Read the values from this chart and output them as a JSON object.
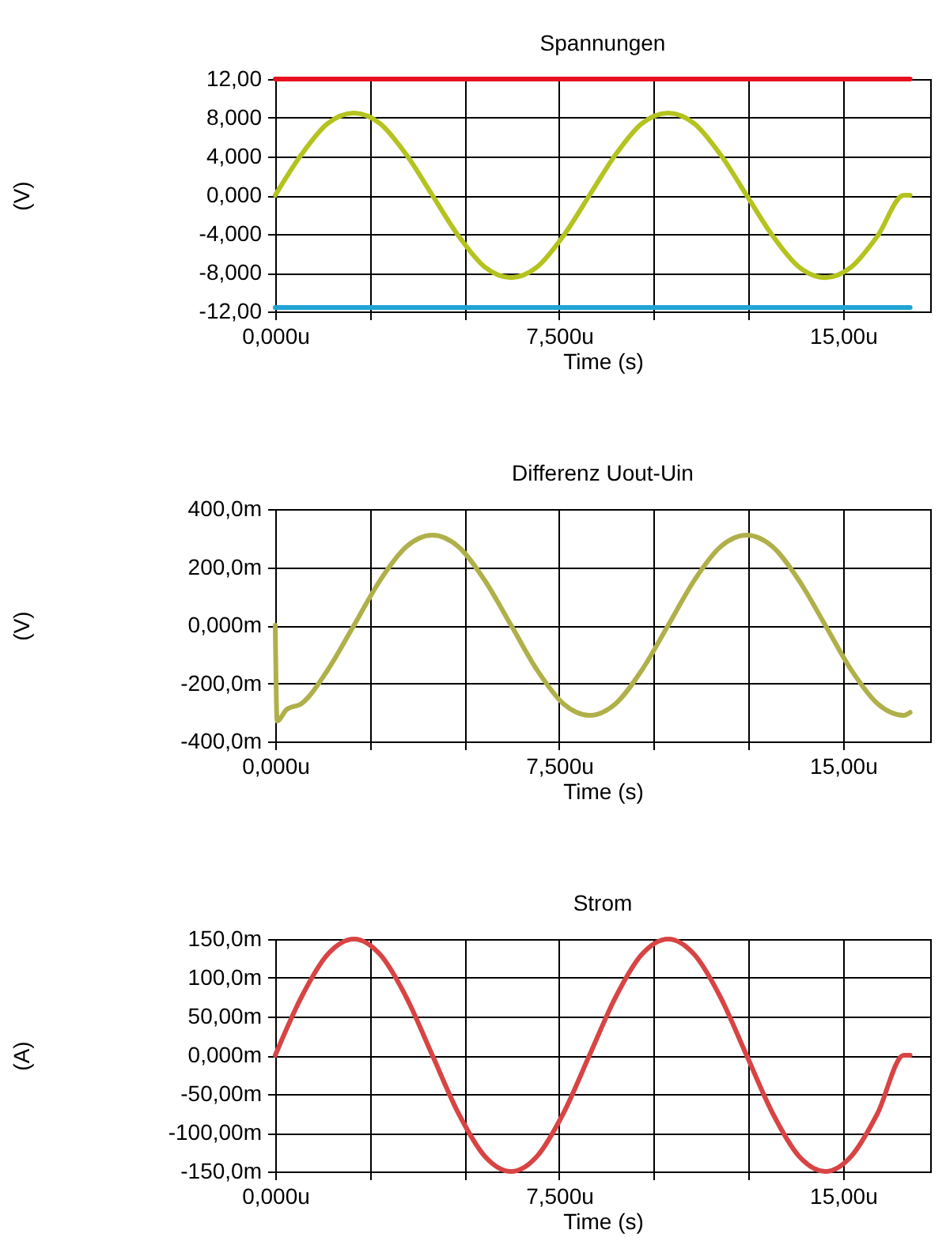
{
  "chart_data": [
    {
      "type": "line",
      "title": "Spannungen",
      "xlabel": "Time (s)",
      "ylabel": "(V)",
      "grid": true,
      "legend": false,
      "xlim": [
        0,
        17.3
      ],
      "xticks": [
        {
          "value": 0,
          "label": "0,000u"
        },
        {
          "value": 2.5,
          "label": null
        },
        {
          "value": 5,
          "label": null
        },
        {
          "value": 7.5,
          "label": "7,500u"
        },
        {
          "value": 10,
          "label": null
        },
        {
          "value": 12.5,
          "label": null
        },
        {
          "value": 15,
          "label": "15,00u"
        }
      ],
      "ylim": [
        -12,
        12
      ],
      "yticks": [
        {
          "value": 12,
          "label": "12,00"
        },
        {
          "value": 8,
          "label": "8,000"
        },
        {
          "value": 4,
          "label": "4,000"
        },
        {
          "value": 0,
          "label": "0,000"
        },
        {
          "value": -4,
          "label": "-4,000"
        },
        {
          "value": -8,
          "label": "-8,000"
        },
        {
          "value": -12,
          "label": "-12,00"
        }
      ],
      "series": [
        {
          "color": "#e8101c",
          "x": [
            0,
            16.77
          ],
          "values": [
            12,
            12
          ]
        },
        {
          "color": "#20a4d4",
          "x": [
            0,
            16.77
          ],
          "values": [
            -11.6,
            -11.6
          ]
        },
        {
          "color": "#b4c31e",
          "x": [
            0,
            0.69,
            1.38,
            2.08,
            2.77,
            3.46,
            4.15,
            4.84,
            5.53,
            6.23,
            6.92,
            7.61,
            8.3,
            8.99,
            9.68,
            10.38,
            11.07,
            11.76,
            12.45,
            13.14,
            13.83,
            14.53,
            15.22,
            15.91,
            16.6,
            16.77
          ],
          "values": [
            0,
            4.2,
            7.4,
            8.5,
            7.4,
            4.2,
            0,
            -4.2,
            -7.4,
            -8.5,
            -7.4,
            -4.2,
            0,
            4.2,
            7.4,
            8.5,
            7.4,
            4.2,
            0,
            -4.2,
            -7.4,
            -8.5,
            -7.4,
            -4.2,
            0,
            0
          ]
        }
      ]
    },
    {
      "type": "line",
      "title": "Differenz Uout-Uin",
      "xlabel": "Time (s)",
      "ylabel": "(V)",
      "grid": true,
      "legend": false,
      "xlim": [
        0,
        17.3
      ],
      "xticks": [
        {
          "value": 0,
          "label": "0,000u"
        },
        {
          "value": 2.5,
          "label": null
        },
        {
          "value": 5,
          "label": null
        },
        {
          "value": 7.5,
          "label": "7,500u"
        },
        {
          "value": 10,
          "label": null
        },
        {
          "value": 12.5,
          "label": null
        },
        {
          "value": 15,
          "label": "15,00u"
        }
      ],
      "ylim": [
        -400,
        400
      ],
      "yticks": [
        {
          "value": 400,
          "label": "400,0m"
        },
        {
          "value": 200,
          "label": "200,0m"
        },
        {
          "value": 0,
          "label": "0,000m"
        },
        {
          "value": -200,
          "label": "-200,0m"
        },
        {
          "value": -400,
          "label": "-400,0m"
        }
      ],
      "series": [
        {
          "color": "#b0b04a",
          "x": [
            0,
            0.05,
            0.3,
            0.69,
            1.38,
            2.08,
            2.77,
            3.46,
            4.15,
            4.84,
            5.53,
            6.23,
            6.92,
            7.61,
            8.3,
            8.99,
            9.68,
            10.38,
            11.07,
            11.76,
            12.45,
            13.14,
            13.83,
            14.53,
            15.22,
            15.91,
            16.6,
            16.77
          ],
          "values": [
            0,
            -330,
            -290,
            -270,
            -155,
            0,
            155,
            270,
            310,
            270,
            155,
            0,
            -155,
            -270,
            -310,
            -270,
            -155,
            0,
            155,
            270,
            310,
            270,
            155,
            0,
            -155,
            -270,
            -310,
            -300
          ]
        }
      ]
    },
    {
      "type": "line",
      "title": "Strom",
      "xlabel": "Time (s)",
      "ylabel": "(A)",
      "grid": true,
      "legend": false,
      "xlim": [
        0,
        17.3
      ],
      "xticks": [
        {
          "value": 0,
          "label": "0,000u"
        },
        {
          "value": 2.5,
          "label": null
        },
        {
          "value": 5,
          "label": null
        },
        {
          "value": 7.5,
          "label": "7,500u"
        },
        {
          "value": 10,
          "label": null
        },
        {
          "value": 12.5,
          "label": null
        },
        {
          "value": 15,
          "label": "15,00u"
        }
      ],
      "ylim": [
        -150,
        150
      ],
      "yticks": [
        {
          "value": 150,
          "label": "150,0m"
        },
        {
          "value": 100,
          "label": "100,0m"
        },
        {
          "value": 50,
          "label": "50,00m"
        },
        {
          "value": 0,
          "label": "0,000m"
        },
        {
          "value": -50,
          "label": "-50,00m"
        },
        {
          "value": -100,
          "label": "-100,00m"
        },
        {
          "value": -150,
          "label": "-150,0m"
        }
      ],
      "series": [
        {
          "color": "#d84444",
          "x": [
            0,
            0.69,
            1.38,
            2.08,
            2.77,
            3.46,
            4.15,
            4.84,
            5.53,
            6.23,
            6.92,
            7.61,
            8.3,
            8.99,
            9.68,
            10.38,
            11.07,
            11.76,
            12.45,
            13.14,
            13.83,
            14.53,
            15.22,
            15.91,
            16.6,
            16.77
          ],
          "values": [
            0,
            75,
            130,
            150,
            130,
            75,
            0,
            -75,
            -130,
            -150,
            -130,
            -75,
            0,
            75,
            130,
            150,
            130,
            75,
            0,
            -75,
            -130,
            -150,
            -130,
            -75,
            0,
            0
          ]
        }
      ]
    }
  ]
}
